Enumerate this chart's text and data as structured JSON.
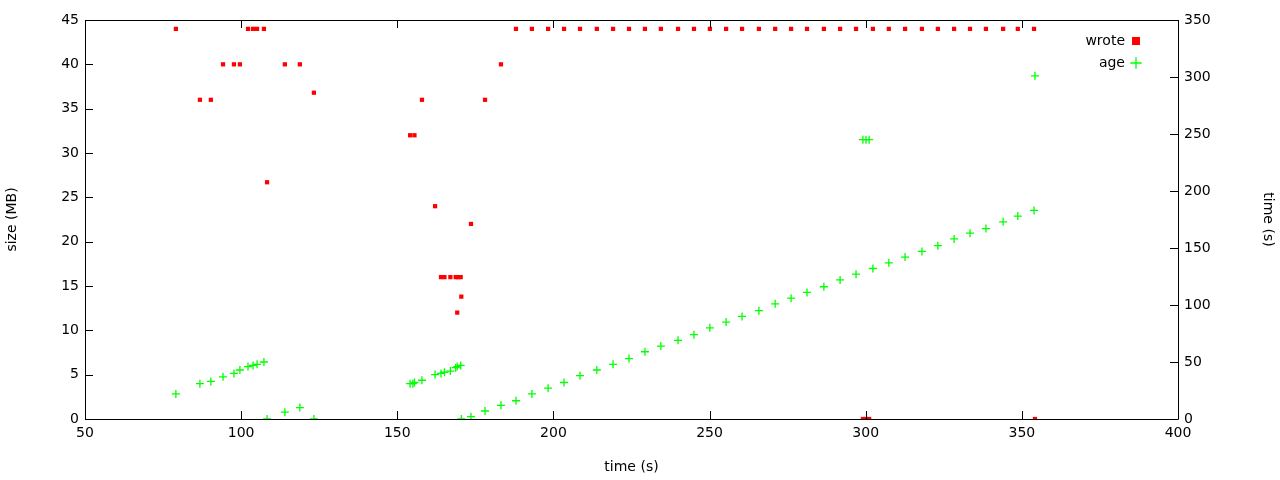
{
  "chart_data": {
    "type": "scatter",
    "xlabel": "time (s)",
    "ylabel": "size (MB)",
    "y2label": "time (s)",
    "xlim": [
      50,
      400
    ],
    "xticks": [
      50,
      100,
      150,
      200,
      250,
      300,
      350,
      400
    ],
    "ylim": [
      0,
      45
    ],
    "yticks": [
      0,
      5,
      10,
      15,
      20,
      25,
      30,
      35,
      40,
      45
    ],
    "y2lim": [
      0,
      350
    ],
    "y2ticks": [
      0,
      50,
      100,
      150,
      200,
      250,
      300,
      350
    ],
    "grid": false,
    "legend": "top right",
    "series": [
      {
        "name": "wrote",
        "color": "#ff0000",
        "marker": "square",
        "x": [
          79.1,
          86.8,
          90.3,
          94.2,
          97.7,
          99.6,
          102.2,
          103.8,
          105.1,
          107.3,
          108.3,
          114,
          118.8,
          123.3,
          154.1,
          155.5,
          157.9,
          162.1,
          164,
          165.1,
          167,
          168.7,
          169.2,
          169.5,
          170.3,
          170.5,
          173.6,
          178.1,
          183.2,
          188,
          193.1,
          198.3,
          203.4,
          208.5,
          213.9,
          219.1,
          224.2,
          229.3,
          234.4,
          239.9,
          245,
          250.1,
          255.3,
          260.4,
          265.8,
          271,
          276.1,
          281.2,
          286.6,
          291.8,
          296.9,
          299.1,
          300.1,
          301.1,
          302.3,
          307.4,
          312.6,
          318,
          323.1,
          328.3,
          333.4,
          338.5,
          344,
          348.7,
          353.9,
          354.2
        ],
        "values": [
          44,
          36,
          36,
          40,
          40,
          40,
          44,
          44,
          44,
          44,
          26.7,
          40,
          40,
          36.8,
          32,
          32,
          36,
          24,
          16,
          16,
          16,
          16,
          12,
          16,
          16,
          13.8,
          22,
          36,
          40,
          44,
          44,
          44,
          44,
          44,
          44,
          44,
          44,
          44,
          44,
          44,
          44,
          44,
          44,
          44,
          44,
          44,
          44,
          44,
          44,
          44,
          44,
          0,
          0,
          0,
          44,
          44,
          44,
          44,
          44,
          44,
          44,
          44,
          44,
          44,
          44,
          0
        ]
      },
      {
        "name": "age",
        "color": "#00ff00",
        "marker": "cross",
        "axis": "y2",
        "x": [
          79.1,
          86.8,
          90.3,
          94.2,
          97.7,
          99.6,
          102.2,
          103.8,
          105.1,
          107.3,
          108.3,
          114,
          118.8,
          123.3,
          154.1,
          155,
          155.5,
          157.9,
          162.1,
          164,
          165.1,
          167,
          168.7,
          169.2,
          170.3,
          170.5,
          173.6,
          178.1,
          183.2,
          188,
          193.1,
          198.3,
          203.4,
          208.5,
          213.9,
          219.1,
          224.2,
          229.3,
          234.4,
          239.9,
          245,
          250.1,
          255.3,
          260.4,
          265.8,
          271,
          276.1,
          281.2,
          286.6,
          291.8,
          296.9,
          299.1,
          300.1,
          301.1,
          302.3,
          307.4,
          312.6,
          318,
          323.1,
          328.3,
          333.4,
          338.5,
          344,
          348.7,
          353.9,
          354.2
        ],
        "values": [
          22,
          31,
          33,
          37,
          40,
          43,
          46,
          47,
          48,
          50,
          0,
          6,
          10,
          0,
          31,
          31,
          32,
          34,
          39,
          40,
          41,
          42,
          45,
          46,
          47,
          0,
          2,
          7,
          12,
          16,
          22,
          27,
          32,
          38,
          43,
          48,
          53,
          59,
          64,
          69,
          74,
          80,
          85,
          90,
          95,
          101,
          106,
          111,
          116,
          122,
          127,
          245,
          245,
          245,
          132,
          137,
          142,
          147,
          152,
          158,
          163,
          167,
          173,
          178,
          183,
          301
        ]
      }
    ]
  }
}
